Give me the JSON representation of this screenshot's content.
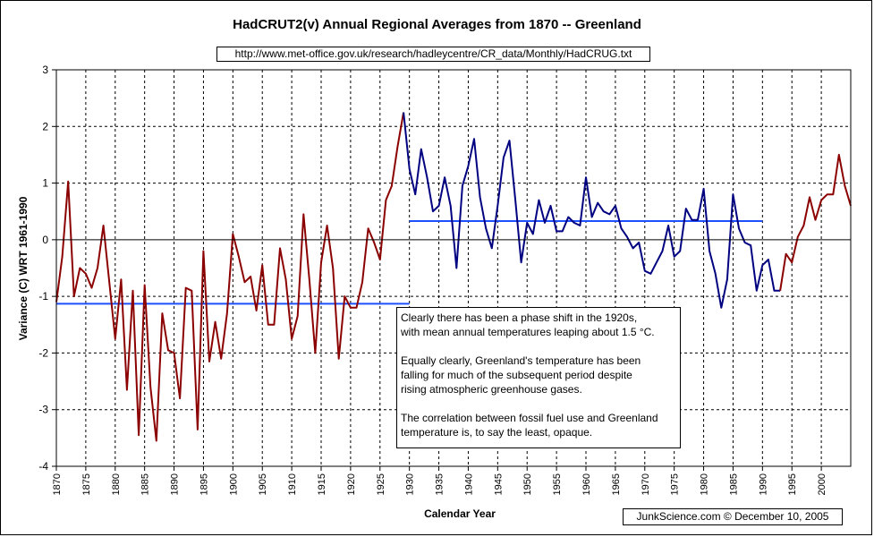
{
  "chart_data": {
    "type": "line",
    "title": "HadCRUT2(v) Annual Regional Averages from 1870 -- Greenland",
    "source_url": "http://www.met-office.gov.uk/research/hadleycentre/CR_data/Monthly/HadCRUG.txt",
    "credit": "JunkScience.com ©  December 10, 2005",
    "xlabel": "Calendar Year",
    "ylabel": "Variance (C) WRT 1961-1990",
    "xlim": [
      1870,
      2005
    ],
    "ylim": [
      -4,
      3
    ],
    "y_ticks": [
      "3",
      "2",
      "1",
      "0",
      "-1",
      "-2",
      "-3",
      "-4"
    ],
    "x_ticks": [
      "1870",
      "1875",
      "1880",
      "1885",
      "1890",
      "1895",
      "1900",
      "1905",
      "1910",
      "1915",
      "1920",
      "1925",
      "1930",
      "1935",
      "1940",
      "1945",
      "1950",
      "1955",
      "1960",
      "1965",
      "1970",
      "1975",
      "1980",
      "1985",
      "1990",
      "1995",
      "2000"
    ],
    "grid": true,
    "series": [
      {
        "color": "#8b0000",
        "x": [
          1870,
          1871,
          1872,
          1873,
          1874,
          1875,
          1876,
          1877,
          1878,
          1879,
          1880,
          1881,
          1882,
          1883,
          1884,
          1885,
          1886,
          1887,
          1888,
          1889,
          1890,
          1891,
          1892,
          1893,
          1894,
          1895,
          1896,
          1897,
          1898,
          1899,
          1900,
          1901,
          1902,
          1903,
          1904,
          1905,
          1906,
          1907,
          1908,
          1909,
          1910,
          1911,
          1912,
          1913,
          1914,
          1915,
          1916,
          1917,
          1918,
          1919,
          1920,
          1921,
          1922,
          1923,
          1924,
          1925,
          1926,
          1927,
          1928,
          1929
        ],
        "y": [
          -1.1,
          -0.3,
          1.03,
          -1.0,
          -0.5,
          -0.6,
          -0.85,
          -0.5,
          0.25,
          -0.75,
          -1.75,
          -0.7,
          -2.65,
          -0.9,
          -3.45,
          -0.8,
          -2.6,
          -3.55,
          -1.3,
          -1.95,
          -2.0,
          -2.8,
          -0.85,
          -0.9,
          -3.35,
          -0.2,
          -2.15,
          -1.45,
          -2.1,
          -1.3,
          0.1,
          -0.3,
          -0.75,
          -0.65,
          -1.25,
          -0.45,
          -1.5,
          -1.5,
          -0.15,
          -0.7,
          -1.75,
          -1.35,
          0.45,
          -0.7,
          -2.0,
          -0.4,
          0.25,
          -0.5,
          -2.1,
          -1.0,
          -1.2,
          -1.2,
          -0.75,
          0.2,
          -0.05,
          -0.35,
          0.7,
          0.95,
          1.65,
          2.25
        ]
      },
      {
        "color": "#000080",
        "x": [
          1929,
          1930,
          1931,
          1932,
          1933,
          1934,
          1935,
          1936,
          1937,
          1938,
          1939,
          1940,
          1941,
          1942,
          1943,
          1944,
          1945,
          1946,
          1947,
          1948,
          1949,
          1950,
          1951,
          1952,
          1953,
          1954,
          1955,
          1956,
          1957,
          1958,
          1959,
          1960,
          1961,
          1962,
          1963,
          1964,
          1965,
          1966,
          1967,
          1968,
          1969,
          1970,
          1971,
          1972,
          1973,
          1974,
          1975,
          1976,
          1977,
          1978,
          1979,
          1980,
          1981,
          1982,
          1983,
          1984,
          1985,
          1986,
          1987,
          1988,
          1989,
          1990,
          1991,
          1992,
          1993
        ],
        "y": [
          2.25,
          1.25,
          0.8,
          1.6,
          1.1,
          0.5,
          0.6,
          1.1,
          0.6,
          -0.5,
          0.95,
          1.3,
          1.78,
          0.75,
          0.2,
          -0.15,
          0.6,
          1.45,
          1.75,
          0.7,
          -0.4,
          0.3,
          0.1,
          0.7,
          0.3,
          0.6,
          0.15,
          0.15,
          0.4,
          0.3,
          0.25,
          1.1,
          0.4,
          0.65,
          0.5,
          0.45,
          0.6,
          0.2,
          0.05,
          -0.15,
          -0.05,
          -0.55,
          -0.6,
          -0.4,
          -0.2,
          0.25,
          -0.3,
          -0.2,
          0.55,
          0.35,
          0.35,
          0.9,
          -0.2,
          -0.6,
          -1.2,
          -0.7,
          0.8,
          0.2,
          -0.05,
          -0.1,
          -0.9,
          -0.45,
          -0.35,
          -0.9,
          -0.9
        ]
      },
      {
        "color": "#8b0000",
        "x": [
          1993,
          1994,
          1995,
          1996,
          1997,
          1998,
          1999,
          2000,
          2001,
          2002,
          2003,
          2004,
          2005
        ],
        "y": [
          -0.9,
          -0.25,
          -0.4,
          0.05,
          0.25,
          0.75,
          0.35,
          0.7,
          0.8,
          0.8,
          1.5,
          0.95,
          0.6
        ]
      }
    ],
    "reference_lines": [
      {
        "color": "#1e50ff",
        "x": [
          1870,
          1930
        ],
        "y": -1.13
      },
      {
        "color": "#1e50ff",
        "x": [
          1930,
          1990
        ],
        "y": 0.33
      }
    ]
  },
  "annotation": {
    "p1_line1": "Clearly there has been a phase shift in the 1920s,",
    "p1_line2": "with mean annual temperatures leaping about 1.5 °C.",
    "p2_line1": "Equally clearly, Greenland's temperature has been",
    "p2_line2": "falling for much of the subsequent period despite",
    "p2_line3": "rising atmospheric greenhouse gases.",
    "p3_line1": "The correlation between fossil fuel use and Greenland",
    "p3_line2": "temperature is, to say the least, opaque."
  }
}
